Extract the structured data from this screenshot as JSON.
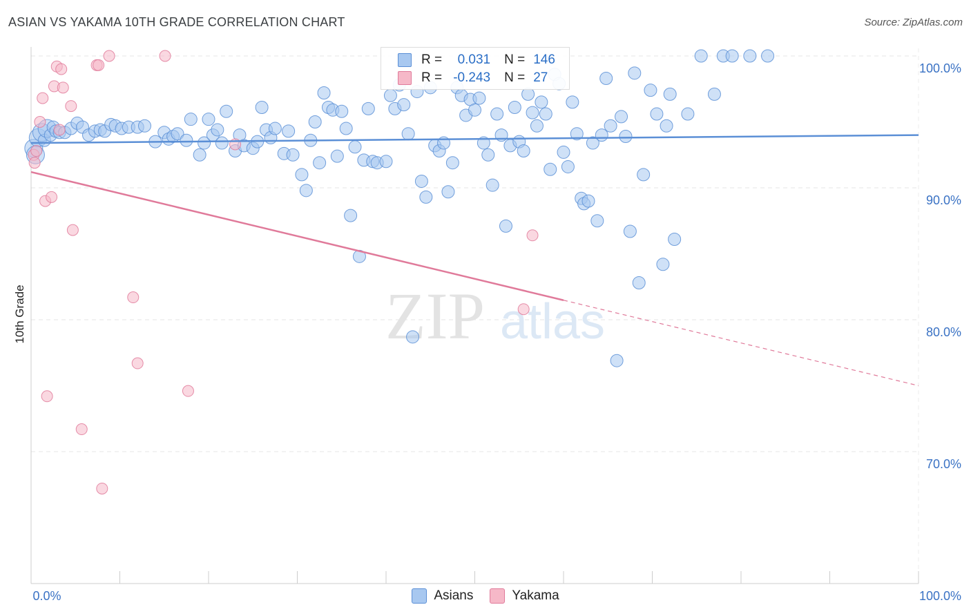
{
  "title": "ASIAN VS YAKAMA 10TH GRADE CORRELATION CHART",
  "source": "Source: ZipAtlas.com",
  "watermark": {
    "zip": "ZIP",
    "atlas": "atlas"
  },
  "legend": {
    "r_label": "R =",
    "n_label": "N =",
    "series": [
      {
        "name": "Asians",
        "r": "0.031",
        "n": "146",
        "fill": "#a8c8f0",
        "stroke": "#5b8fd6"
      },
      {
        "name": "Yakama",
        "r": "-0.243",
        "n": "27",
        "fill": "#f6b8c8",
        "stroke": "#e07a9a"
      }
    ]
  },
  "chart_data": {
    "type": "scatter",
    "title": "ASIAN VS YAKAMA 10TH GRADE CORRELATION CHART",
    "xlabel": "",
    "ylabel": "10th Grade",
    "xlim": [
      0,
      100
    ],
    "ylim": [
      60,
      100
    ],
    "x_tick_labels": [
      "0.0%",
      "100.0%"
    ],
    "y_ticks": [
      70,
      80,
      90,
      100
    ],
    "y_tick_labels": [
      "70.0%",
      "80.0%",
      "90.0%",
      "100.0%"
    ],
    "grid": true,
    "series": [
      {
        "name": "Asians",
        "color": "#5b8fd6",
        "fill": "#a8c8f0",
        "trend": {
          "x0": 0,
          "y0": 93.4,
          "x1": 100,
          "y1": 94.0,
          "dashed_from": 100
        },
        "points": [
          [
            0.3,
            93.0,
            1
          ],
          [
            0.5,
            92.5,
            1
          ],
          [
            0.8,
            93.8,
            1
          ],
          [
            1.2,
            94.2,
            1
          ],
          [
            1.5,
            93.6,
            0
          ],
          [
            1.8,
            94.5,
            1
          ],
          [
            2.2,
            94.0,
            0
          ],
          [
            2.5,
            94.6,
            0
          ],
          [
            2.8,
            94.3,
            0
          ],
          [
            3.2,
            94.2,
            0
          ],
          [
            3.8,
            94.2,
            0
          ],
          [
            4.5,
            94.5,
            0
          ],
          [
            5.2,
            94.9,
            0
          ],
          [
            5.8,
            94.6,
            0
          ],
          [
            6.5,
            94.0,
            0
          ],
          [
            7.2,
            94.3,
            0
          ],
          [
            7.8,
            94.4,
            0
          ],
          [
            8.3,
            94.3,
            0
          ],
          [
            9.0,
            94.8,
            0
          ],
          [
            9.5,
            94.7,
            0
          ],
          [
            10.2,
            94.5,
            0
          ],
          [
            11.0,
            94.6,
            0
          ],
          [
            12.0,
            94.6,
            0
          ],
          [
            12.8,
            94.7,
            0
          ],
          [
            14.0,
            93.5,
            0
          ],
          [
            15.0,
            94.2,
            0
          ],
          [
            15.5,
            93.7,
            0
          ],
          [
            16.0,
            93.9,
            0
          ],
          [
            16.5,
            94.1,
            0
          ],
          [
            17.5,
            93.6,
            0
          ],
          [
            18.0,
            95.2,
            0
          ],
          [
            19.0,
            92.5,
            0
          ],
          [
            19.5,
            93.4,
            0
          ],
          [
            20.0,
            95.2,
            0
          ],
          [
            20.5,
            94.0,
            0
          ],
          [
            21.0,
            94.4,
            0
          ],
          [
            21.5,
            93.4,
            0
          ],
          [
            22.0,
            95.8,
            0
          ],
          [
            23.0,
            92.8,
            0
          ],
          [
            23.5,
            94.0,
            0
          ],
          [
            24.0,
            93.2,
            0
          ],
          [
            25.0,
            93.0,
            0
          ],
          [
            25.5,
            93.5,
            0
          ],
          [
            26.0,
            96.1,
            0
          ],
          [
            26.5,
            94.4,
            0
          ],
          [
            27.0,
            93.8,
            0
          ],
          [
            27.5,
            94.5,
            0
          ],
          [
            28.5,
            92.6,
            0
          ],
          [
            29.0,
            94.3,
            0
          ],
          [
            29.5,
            92.5,
            0
          ],
          [
            30.5,
            91.0,
            0
          ],
          [
            31.0,
            89.8,
            0
          ],
          [
            31.5,
            93.6,
            0
          ],
          [
            32.0,
            95.0,
            0
          ],
          [
            32.5,
            91.9,
            0
          ],
          [
            33.0,
            97.2,
            0
          ],
          [
            33.5,
            96.1,
            0
          ],
          [
            34.0,
            95.9,
            0
          ],
          [
            34.5,
            92.4,
            0
          ],
          [
            35.0,
            95.8,
            0
          ],
          [
            35.5,
            94.5,
            0
          ],
          [
            36.0,
            87.9,
            0
          ],
          [
            36.5,
            93.1,
            0
          ],
          [
            37.0,
            84.8,
            0
          ],
          [
            37.5,
            92.1,
            0
          ],
          [
            38.0,
            96.0,
            0
          ],
          [
            38.5,
            92.0,
            0
          ],
          [
            39.0,
            91.9,
            0
          ],
          [
            40.0,
            92.0,
            0
          ],
          [
            40.5,
            97.0,
            0
          ],
          [
            41.0,
            96.0,
            0
          ],
          [
            41.5,
            97.8,
            0
          ],
          [
            42.0,
            96.3,
            0
          ],
          [
            42.5,
            94.1,
            0
          ],
          [
            43.0,
            78.7,
            0
          ],
          [
            43.5,
            97.3,
            0
          ],
          [
            44.0,
            90.5,
            0
          ],
          [
            44.5,
            89.3,
            0
          ],
          [
            45.0,
            97.6,
            0
          ],
          [
            45.5,
            93.2,
            0
          ],
          [
            46.0,
            92.8,
            0
          ],
          [
            46.5,
            93.4,
            0
          ],
          [
            47.0,
            89.7,
            0
          ],
          [
            47.5,
            91.9,
            0
          ],
          [
            48.0,
            97.6,
            0
          ],
          [
            48.5,
            97.0,
            0
          ],
          [
            49.0,
            95.5,
            0
          ],
          [
            49.5,
            96.7,
            0
          ],
          [
            50.0,
            95.9,
            0
          ],
          [
            50.5,
            96.8,
            0
          ],
          [
            51.0,
            93.4,
            0
          ],
          [
            51.5,
            92.5,
            0
          ],
          [
            52.0,
            90.2,
            0
          ],
          [
            52.5,
            95.6,
            0
          ],
          [
            53.0,
            94.0,
            0
          ],
          [
            53.5,
            87.1,
            0
          ],
          [
            54.0,
            93.2,
            0
          ],
          [
            54.5,
            96.1,
            0
          ],
          [
            55.0,
            93.5,
            0
          ],
          [
            55.5,
            92.8,
            0
          ],
          [
            56.0,
            97.1,
            0
          ],
          [
            56.5,
            95.7,
            0
          ],
          [
            57.0,
            94.7,
            0
          ],
          [
            57.5,
            96.5,
            0
          ],
          [
            58.0,
            95.6,
            0
          ],
          [
            58.5,
            91.4,
            0
          ],
          [
            59.0,
            98.6,
            0
          ],
          [
            59.5,
            97.9,
            0
          ],
          [
            60.0,
            92.7,
            0
          ],
          [
            60.5,
            91.6,
            0
          ],
          [
            61.0,
            96.5,
            0
          ],
          [
            61.5,
            94.1,
            0
          ],
          [
            62.0,
            89.2,
            0
          ],
          [
            62.3,
            88.8,
            0
          ],
          [
            62.8,
            89.0,
            0
          ],
          [
            63.3,
            93.4,
            0
          ],
          [
            63.8,
            87.5,
            0
          ],
          [
            64.3,
            94.0,
            0
          ],
          [
            64.8,
            98.3,
            0
          ],
          [
            65.3,
            94.7,
            0
          ],
          [
            66.0,
            76.9,
            0
          ],
          [
            66.5,
            95.4,
            0
          ],
          [
            67.0,
            93.9,
            0
          ],
          [
            67.5,
            86.7,
            0
          ],
          [
            68.0,
            98.7,
            0
          ],
          [
            68.5,
            82.8,
            0
          ],
          [
            69.0,
            91.0,
            0
          ],
          [
            69.8,
            97.4,
            0
          ],
          [
            70.5,
            95.6,
            0
          ],
          [
            71.2,
            84.2,
            0
          ],
          [
            71.6,
            94.7,
            0
          ],
          [
            72.0,
            97.1,
            0
          ],
          [
            72.5,
            86.1,
            0
          ],
          [
            74.0,
            95.6,
            0
          ],
          [
            75.5,
            100,
            0
          ],
          [
            78.0,
            100,
            0
          ],
          [
            79.0,
            100,
            0
          ],
          [
            81.0,
            100,
            0
          ],
          [
            77.0,
            97.1,
            0
          ],
          [
            83.0,
            100,
            0
          ]
        ]
      },
      {
        "name": "Yakama",
        "color": "#e07a9a",
        "fill": "#f6b8c8",
        "trend": {
          "x0": 0,
          "y0": 91.2,
          "x1": 100,
          "y1": 75.0,
          "dashed_from": 60
        },
        "points": [
          [
            0.3,
            92.5
          ],
          [
            0.4,
            91.9
          ],
          [
            0.6,
            92.8
          ],
          [
            1.0,
            95.0
          ],
          [
            1.3,
            96.8
          ],
          [
            1.6,
            89.0
          ],
          [
            1.8,
            74.2
          ],
          [
            2.3,
            89.3
          ],
          [
            2.6,
            97.7
          ],
          [
            2.9,
            99.2
          ],
          [
            3.2,
            94.4
          ],
          [
            3.4,
            99.0
          ],
          [
            3.6,
            97.6
          ],
          [
            4.5,
            96.2
          ],
          [
            4.7,
            86.8
          ],
          [
            5.7,
            71.7
          ],
          [
            7.4,
            99.3
          ],
          [
            7.6,
            99.3
          ],
          [
            8.0,
            67.2
          ],
          [
            8.8,
            100
          ],
          [
            11.5,
            81.7
          ],
          [
            12.0,
            76.7
          ],
          [
            15.1,
            100
          ],
          [
            17.7,
            74.6
          ],
          [
            23.0,
            93.3
          ],
          [
            55.5,
            80.8
          ],
          [
            56.5,
            86.4
          ]
        ]
      }
    ]
  }
}
